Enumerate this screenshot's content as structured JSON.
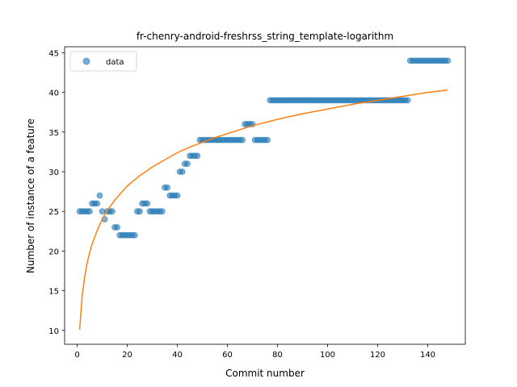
{
  "chart_data": {
    "type": "scatter",
    "title": "fr-chenry-android-freshrss_string_template-logarithm",
    "xlabel": "Commit number",
    "ylabel": "Number of instance of a feature",
    "xlim": [
      -5,
      155
    ],
    "ylim": [
      8.25,
      45.75
    ],
    "xticks": [
      0,
      20,
      40,
      60,
      80,
      100,
      120,
      140
    ],
    "yticks": [
      10,
      15,
      20,
      25,
      30,
      35,
      40,
      45
    ],
    "grid": false,
    "legend": {
      "position": "top-left",
      "entries": [
        "data"
      ]
    },
    "series": [
      {
        "name": "data",
        "kind": "scatter",
        "color": "#1f77b4",
        "alpha": 0.6,
        "points": [
          [
            1,
            25
          ],
          [
            2,
            25
          ],
          [
            3,
            25
          ],
          [
            4,
            25
          ],
          [
            5,
            25
          ],
          [
            6,
            26
          ],
          [
            7,
            26
          ],
          [
            8,
            26
          ],
          [
            9,
            27
          ],
          [
            10,
            25
          ],
          [
            11,
            24
          ],
          [
            12,
            25
          ],
          [
            13,
            25
          ],
          [
            14,
            25
          ],
          [
            15,
            23
          ],
          [
            16,
            23
          ],
          [
            17,
            22
          ],
          [
            18,
            22
          ],
          [
            19,
            22
          ],
          [
            20,
            22
          ],
          [
            21,
            22
          ],
          [
            22,
            22
          ],
          [
            23,
            22
          ],
          [
            24,
            25
          ],
          [
            25,
            25
          ],
          [
            26,
            26
          ],
          [
            27,
            26
          ],
          [
            28,
            26
          ],
          [
            29,
            25
          ],
          [
            30,
            25
          ],
          [
            31,
            25
          ],
          [
            32,
            25
          ],
          [
            33,
            25
          ],
          [
            34,
            25
          ],
          [
            35,
            28
          ],
          [
            36,
            28
          ],
          [
            37,
            27
          ],
          [
            38,
            27
          ],
          [
            39,
            27
          ],
          [
            40,
            27
          ],
          [
            41,
            30
          ],
          [
            42,
            30
          ],
          [
            43,
            31
          ],
          [
            44,
            31
          ],
          [
            45,
            32
          ],
          [
            46,
            32
          ],
          [
            47,
            32
          ],
          [
            48,
            32
          ],
          [
            49,
            34
          ],
          [
            50,
            34
          ],
          [
            51,
            34
          ],
          [
            52,
            34
          ],
          [
            53,
            34
          ],
          [
            54,
            34
          ],
          [
            55,
            34
          ],
          [
            56,
            34
          ],
          [
            57,
            34
          ],
          [
            58,
            34
          ],
          [
            59,
            34
          ],
          [
            60,
            34
          ],
          [
            61,
            34
          ],
          [
            62,
            34
          ],
          [
            63,
            34
          ],
          [
            64,
            34
          ],
          [
            65,
            34
          ],
          [
            66,
            34
          ],
          [
            67,
            36
          ],
          [
            68,
            36
          ],
          [
            69,
            36
          ],
          [
            70,
            36
          ],
          [
            71,
            34
          ],
          [
            72,
            34
          ],
          [
            73,
            34
          ],
          [
            74,
            34
          ],
          [
            75,
            34
          ],
          [
            76,
            34
          ],
          [
            77,
            39
          ],
          [
            78,
            39
          ],
          [
            79,
            39
          ],
          [
            80,
            39
          ],
          [
            81,
            39
          ],
          [
            82,
            39
          ],
          [
            83,
            39
          ],
          [
            84,
            39
          ],
          [
            85,
            39
          ],
          [
            86,
            39
          ],
          [
            87,
            39
          ],
          [
            88,
            39
          ],
          [
            89,
            39
          ],
          [
            90,
            39
          ],
          [
            91,
            39
          ],
          [
            92,
            39
          ],
          [
            93,
            39
          ],
          [
            94,
            39
          ],
          [
            95,
            39
          ],
          [
            96,
            39
          ],
          [
            97,
            39
          ],
          [
            98,
            39
          ],
          [
            99,
            39
          ],
          [
            100,
            39
          ],
          [
            101,
            39
          ],
          [
            102,
            39
          ],
          [
            103,
            39
          ],
          [
            104,
            39
          ],
          [
            105,
            39
          ],
          [
            106,
            39
          ],
          [
            107,
            39
          ],
          [
            108,
            39
          ],
          [
            109,
            39
          ],
          [
            110,
            39
          ],
          [
            111,
            39
          ],
          [
            112,
            39
          ],
          [
            113,
            39
          ],
          [
            114,
            39
          ],
          [
            115,
            39
          ],
          [
            116,
            39
          ],
          [
            117,
            39
          ],
          [
            118,
            39
          ],
          [
            119,
            39
          ],
          [
            120,
            39
          ],
          [
            121,
            39
          ],
          [
            122,
            39
          ],
          [
            123,
            39
          ],
          [
            124,
            39
          ],
          [
            125,
            39
          ],
          [
            126,
            39
          ],
          [
            127,
            39
          ],
          [
            128,
            39
          ],
          [
            129,
            39
          ],
          [
            130,
            39
          ],
          [
            131,
            39
          ],
          [
            132,
            39
          ],
          [
            133,
            44
          ],
          [
            134,
            44
          ],
          [
            135,
            44
          ],
          [
            136,
            44
          ],
          [
            137,
            44
          ],
          [
            138,
            44
          ],
          [
            139,
            44
          ],
          [
            140,
            44
          ],
          [
            141,
            44
          ],
          [
            142,
            44
          ],
          [
            143,
            44
          ],
          [
            144,
            44
          ],
          [
            145,
            44
          ],
          [
            146,
            44
          ],
          [
            147,
            44
          ],
          [
            148,
            44
          ]
        ]
      },
      {
        "name": "",
        "kind": "line",
        "color": "#ff7f0e",
        "points": [
          [
            1,
            10.1
          ],
          [
            2,
            14.3
          ],
          [
            3,
            16.7
          ],
          [
            4,
            18.5
          ],
          [
            5,
            19.8
          ],
          [
            6,
            20.9
          ],
          [
            8,
            22.6
          ],
          [
            10,
            24.0
          ],
          [
            12,
            25.1
          ],
          [
            15,
            26.4
          ],
          [
            20,
            28.2
          ],
          [
            25,
            29.5
          ],
          [
            30,
            30.6
          ],
          [
            35,
            31.5
          ],
          [
            40,
            32.4
          ],
          [
            45,
            33.1
          ],
          [
            50,
            33.7
          ],
          [
            55,
            34.3
          ],
          [
            60,
            34.8
          ],
          [
            70,
            35.8
          ],
          [
            80,
            36.6
          ],
          [
            90,
            37.3
          ],
          [
            100,
            37.9
          ],
          [
            110,
            38.5
          ],
          [
            120,
            39.0
          ],
          [
            130,
            39.5
          ],
          [
            140,
            40.0
          ],
          [
            148,
            40.3
          ]
        ]
      }
    ]
  }
}
